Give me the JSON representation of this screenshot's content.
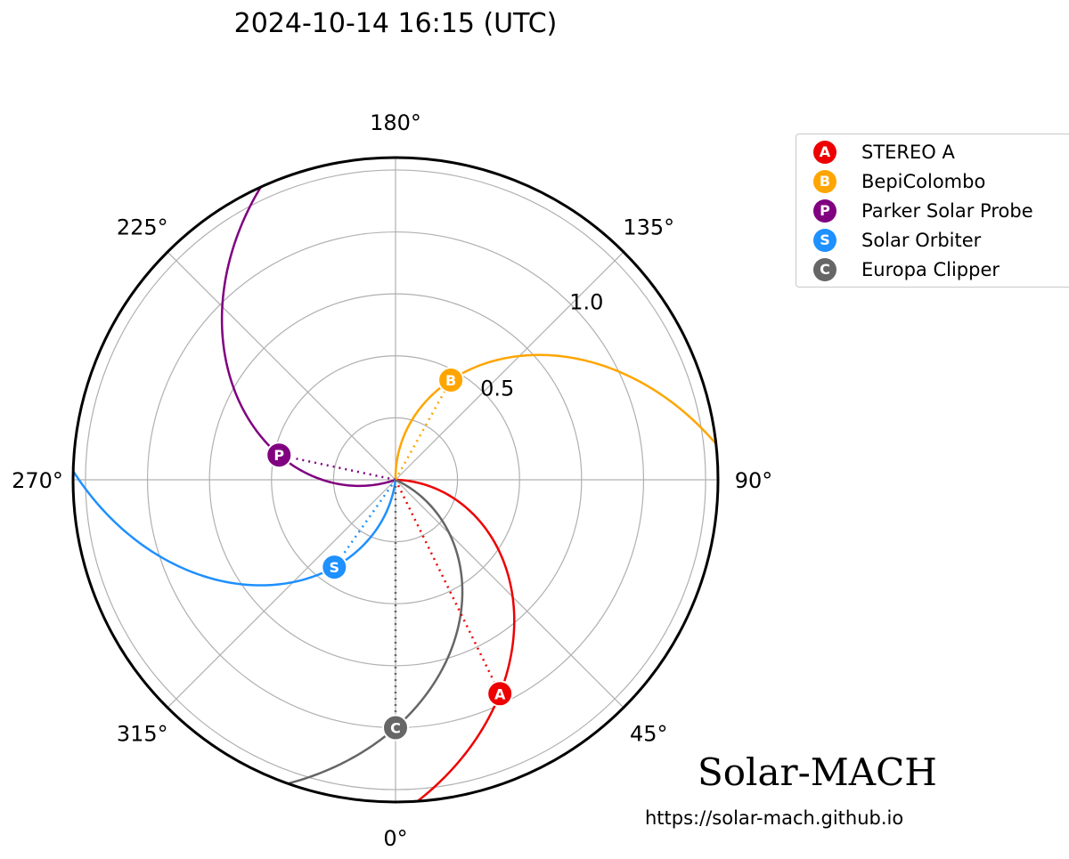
{
  "chart_data": {
    "type": "polar",
    "title": "2024-10-14 16:15 (UTC)",
    "angular_ticks": [
      "0°",
      "45°",
      "90°",
      "135°",
      "180°",
      "225°",
      "270°",
      "315°"
    ],
    "radial_ticks": [
      "0.5",
      "1.0"
    ],
    "radial_tick_values": [
      0.5,
      1.0
    ],
    "r_max": 1.3,
    "grid": true,
    "legend_position": "upper-right outside",
    "series": [
      {
        "name": "STEREO A",
        "marker": "A",
        "color": "#ee0000",
        "longitude_deg": 26,
        "r_au": 0.96
      },
      {
        "name": "BepiColombo",
        "marker": "B",
        "color": "#ffa500",
        "longitude_deg": 151,
        "r_au": 0.46
      },
      {
        "name": "Parker Solar Probe",
        "marker": "P",
        "color": "#800080",
        "longitude_deg": 258,
        "r_au": 0.48
      },
      {
        "name": "Solar Orbiter",
        "marker": "S",
        "color": "#1e90ff",
        "longitude_deg": 325,
        "r_au": 0.43
      },
      {
        "name": "Europa Clipper",
        "marker": "C",
        "color": "#666666",
        "longitude_deg": 0,
        "r_au": 1.0
      }
    ]
  },
  "footer": {
    "brand": "Solar-MACH",
    "url": "https://solar-mach.github.io"
  }
}
